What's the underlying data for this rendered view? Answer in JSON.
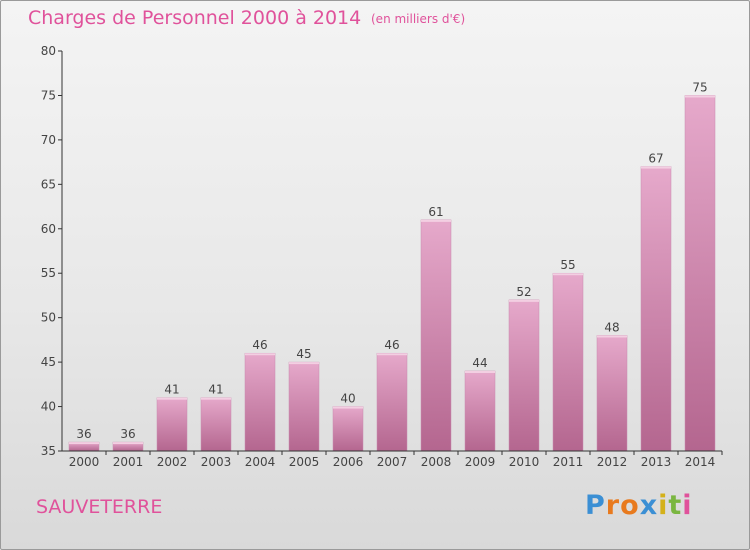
{
  "title": "Charges de Personnel 2000 à 2014",
  "subtitle": "(en milliers d'€)",
  "commune": "SAUVETERRE",
  "brand": {
    "letters": [
      "P",
      "r",
      "o",
      "x",
      "i",
      "t",
      "i"
    ],
    "colors": [
      "#3b8fd4",
      "#e87a1e",
      "#e87a1e",
      "#3b8fd4",
      "#d4b11a",
      "#7ab640",
      "#e0529b"
    ]
  },
  "colors": {
    "accent": "#e0529b",
    "bar_top": "#e6a9cb",
    "bar_bottom": "#b4668f",
    "axis": "#333333"
  },
  "chart_data": {
    "type": "bar",
    "categories": [
      "2000",
      "2001",
      "2002",
      "2003",
      "2004",
      "2005",
      "2006",
      "2007",
      "2008",
      "2009",
      "2010",
      "2011",
      "2012",
      "2013",
      "2014"
    ],
    "values": [
      36,
      36,
      41,
      41,
      46,
      45,
      40,
      46,
      61,
      44,
      52,
      55,
      48,
      67,
      75
    ],
    "ylim": [
      35,
      80
    ],
    "yticks": [
      35,
      40,
      45,
      50,
      55,
      60,
      65,
      70,
      75,
      80
    ],
    "xlabel": "",
    "ylabel": "",
    "grid": false
  }
}
